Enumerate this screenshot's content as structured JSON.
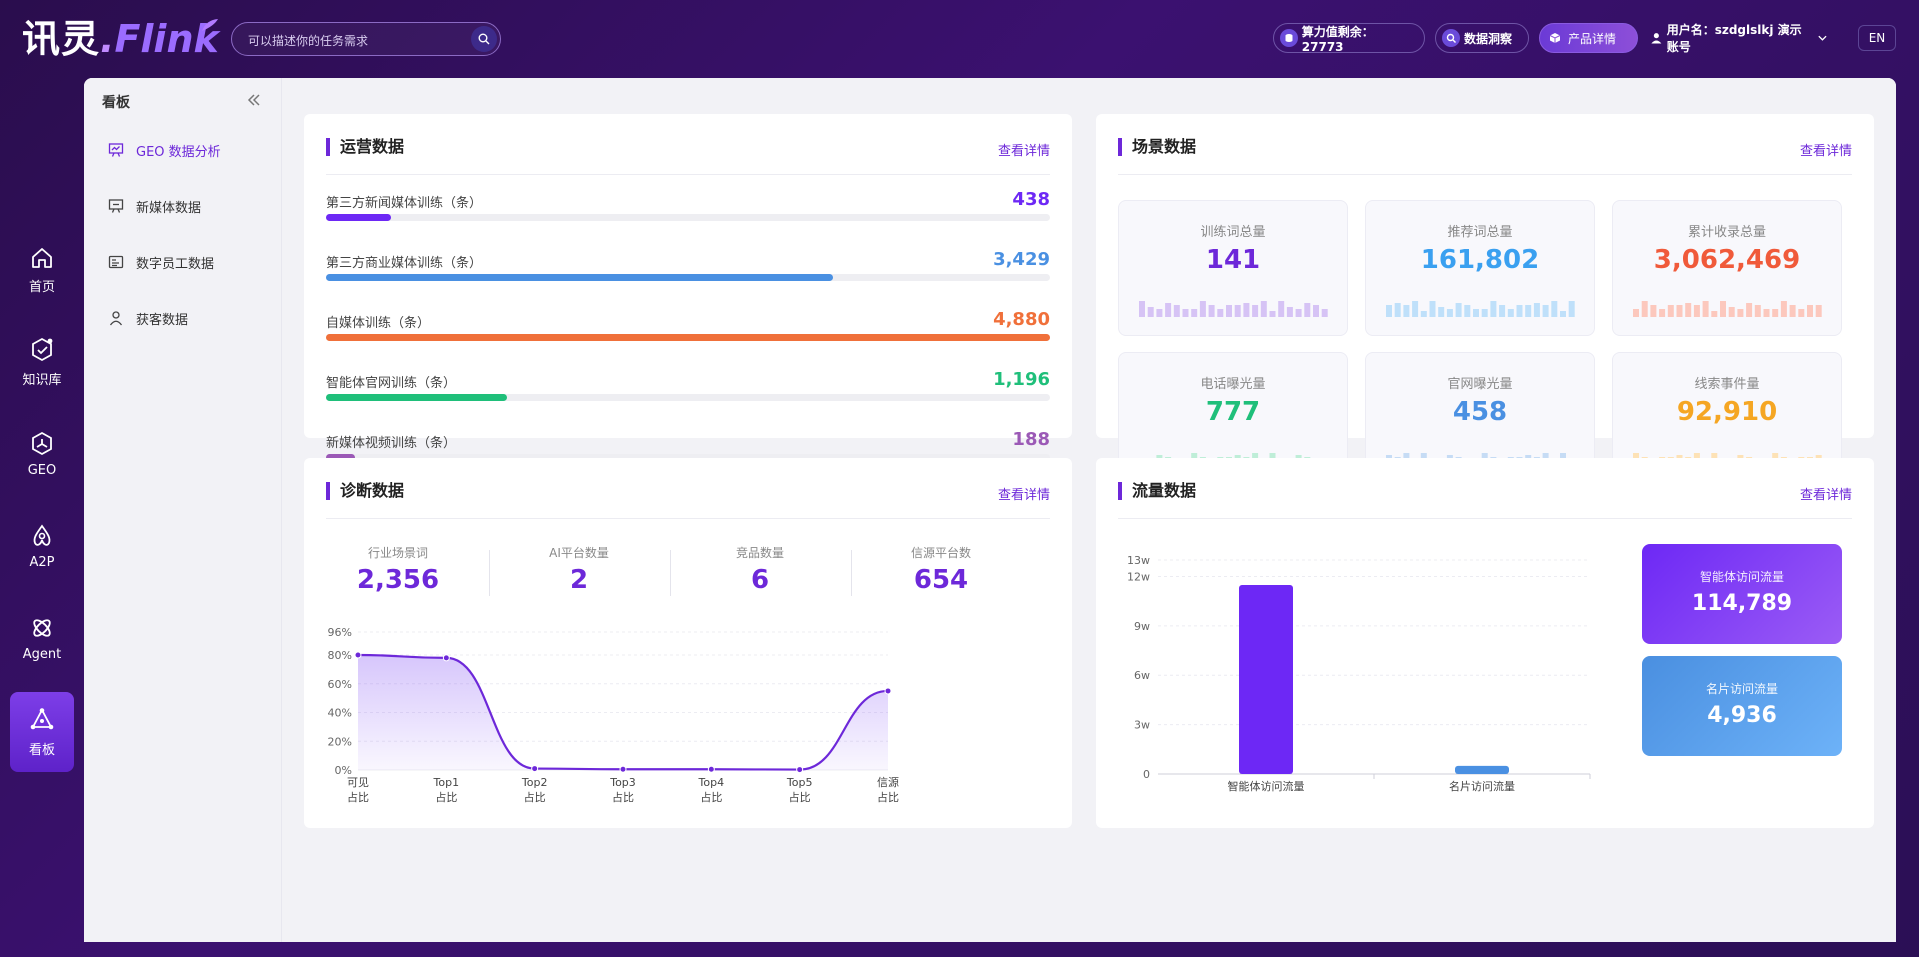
{
  "app": {
    "logo_cn": "讯灵",
    "logo_dot": ".",
    "logo_en": "Flink",
    "search_placeholder": "可以描述你的任务需求"
  },
  "header": {
    "compute_label": "算力值剩余：27773",
    "insight_label": "数据洞察",
    "product_label": "产品详情",
    "user_label": "用户名：szdglslkj 演示账号",
    "lang": "EN"
  },
  "nav": [
    {
      "label": "首页",
      "icon": "home-icon"
    },
    {
      "label": "知识库",
      "icon": "knowledge-icon"
    },
    {
      "label": "GEO",
      "icon": "geo-icon"
    },
    {
      "label": "A2P",
      "icon": "a2p-icon"
    },
    {
      "label": "Agent",
      "icon": "agent-icon"
    },
    {
      "label": "看板",
      "icon": "dashboard-icon",
      "active": true
    }
  ],
  "subnav": {
    "title": "看板",
    "items": [
      {
        "label": "GEO 数据分析",
        "icon": "presentation-chart-icon",
        "active": true
      },
      {
        "label": "新媒体数据",
        "icon": "presentation-icon"
      },
      {
        "label": "数字员工数据",
        "icon": "id-card-icon"
      },
      {
        "label": "获客数据",
        "icon": "user-icon"
      }
    ]
  },
  "operation": {
    "title": "运营数据",
    "link": "查看详情",
    "rows": [
      {
        "label": "第三方新闻媒体训练（条）",
        "value": "438",
        "pct": 0.09,
        "color": "#6d28f5"
      },
      {
        "label": "第三方商业媒体训练（条）",
        "value": "3,429",
        "pct": 0.7,
        "color": "#4a90e2"
      },
      {
        "label": "自媒体训练（条）",
        "value": "4,880",
        "pct": 1.0,
        "color": "#f0703a"
      },
      {
        "label": "智能体官网训练（条）",
        "value": "1,196",
        "pct": 0.25,
        "color": "#1fbf7a"
      },
      {
        "label": "新媒体视频训练（条）",
        "value": "188",
        "pct": 0.04,
        "color": "#9b59b6"
      }
    ]
  },
  "scene": {
    "title": "场景数据",
    "link": "查看详情",
    "tiles": [
      {
        "label": "训练词总量",
        "value": "141",
        "color": "#6d28d9",
        "bar_color": "#d6c3f5"
      },
      {
        "label": "推荐词总量",
        "value": "161,802",
        "color": "#3aa0f0",
        "bar_color": "#bfe0fa"
      },
      {
        "label": "累计收录总量",
        "value": "3,062,469",
        "color": "#f05a3a",
        "bar_color": "#fcc8bd"
      },
      {
        "label": "电话曝光量",
        "value": "777",
        "color": "#1fbf7a",
        "bar_color": "#bfeed8"
      },
      {
        "label": "官网曝光量",
        "value": "458",
        "color": "#4a90e2",
        "bar_color": "#c6dcf5"
      },
      {
        "label": "线索事件量",
        "value": "92,910",
        "color": "#f5a623",
        "bar_color": "#fde2b6"
      }
    ]
  },
  "diagnosis": {
    "title": "诊断数据",
    "link": "查看详情",
    "stats": [
      {
        "label": "行业场景词",
        "value": "2,356"
      },
      {
        "label": "AI平台数量",
        "value": "2"
      },
      {
        "label": "竞品数量",
        "value": "6"
      },
      {
        "label": "信源平台数",
        "value": "654"
      }
    ]
  },
  "traffic": {
    "title": "流量数据",
    "link": "查看详情",
    "cards": [
      {
        "label": "智能体访问流量",
        "value": "114,789"
      },
      {
        "label": "名片访问流量",
        "value": "4,936"
      }
    ]
  },
  "chart_data": [
    {
      "type": "area",
      "categories": [
        [
          "可见",
          "占比"
        ],
        [
          "Top1",
          "占比"
        ],
        [
          "Top2",
          "占比"
        ],
        [
          "Top3",
          "占比"
        ],
        [
          "Top4",
          "占比"
        ],
        [
          "Top5",
          "占比"
        ],
        [
          "信源",
          "占比"
        ]
      ],
      "values": [
        80,
        78,
        1,
        0.5,
        0.5,
        0.3,
        55
      ],
      "y_ticks": [
        "0%",
        "20%",
        "40%",
        "60%",
        "80%",
        "96%"
      ],
      "y_tick_values": [
        0,
        20,
        40,
        60,
        80,
        96
      ],
      "ylim": [
        0,
        96
      ],
      "color": "#6d28d9",
      "grid": true
    },
    {
      "type": "bar",
      "categories": [
        "智能体访问流量",
        "名片访问流量"
      ],
      "values": [
        114789,
        4936
      ],
      "y_ticks": [
        "0",
        "3w",
        "6w",
        "9w",
        "12w",
        "13w"
      ],
      "y_tick_values": [
        0,
        30000,
        60000,
        90000,
        120000,
        130000
      ],
      "ylim": [
        0,
        130000
      ],
      "colors": [
        "#6d28f5",
        "#4a90e2"
      ],
      "grid": true
    }
  ]
}
